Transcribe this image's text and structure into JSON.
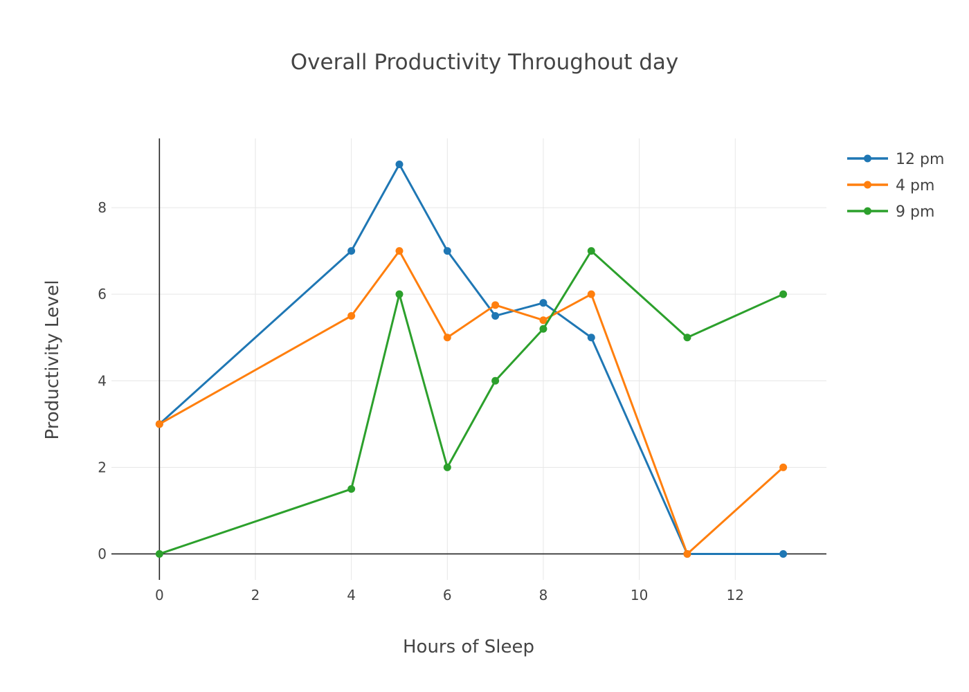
{
  "chart_data": {
    "type": "line",
    "title": "Overall Productivity Throughout day",
    "xlabel": "Hours of Sleep",
    "ylabel": "Productivity Level",
    "xlim": [
      -1.0,
      13.9
    ],
    "ylim": [
      -0.6,
      9.6
    ],
    "xticks": [
      0,
      2,
      4,
      6,
      8,
      10,
      12
    ],
    "yticks": [
      0,
      2,
      4,
      6,
      8
    ],
    "grid": true,
    "legend_position": "top-right",
    "x": [
      0,
      4,
      5,
      6,
      7,
      8,
      9,
      11,
      13
    ],
    "series": [
      {
        "name": "12 pm",
        "color": "#1f77b4",
        "values": [
          3,
          7,
          9,
          7,
          5.5,
          5.8,
          5,
          0,
          0
        ]
      },
      {
        "name": "4 pm",
        "color": "#ff7f0e",
        "values": [
          3,
          5.5,
          7,
          5,
          5.75,
          5.4,
          6,
          0,
          2
        ]
      },
      {
        "name": "9 pm",
        "color": "#2ca02c",
        "values": [
          0,
          1.5,
          6,
          2,
          4,
          5.2,
          7,
          5,
          6
        ]
      }
    ]
  }
}
